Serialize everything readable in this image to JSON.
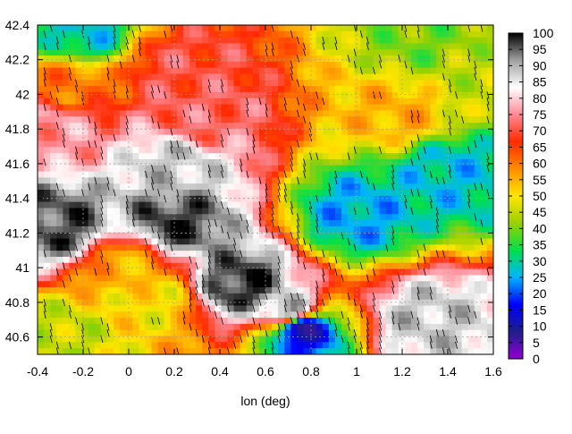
{
  "chart_data": {
    "type": "heatmap",
    "xlabel": "lon (deg)",
    "ylabel": "",
    "xlim": [
      -0.4,
      1.6
    ],
    "ylim": [
      40.5,
      42.4
    ],
    "x_ticks": [
      "-0.4",
      "-0.2",
      "0",
      "0.2",
      "0.4",
      "0.6",
      "0.8",
      "1",
      "1.2",
      "1.4",
      "1.6"
    ],
    "y_ticks": [
      "40.6",
      "40.8",
      "41",
      "41.2",
      "41.4",
      "41.6",
      "41.8",
      "42",
      "42.2",
      "42.4"
    ],
    "colorbar": {
      "min": 0,
      "max": 100,
      "ticks": [
        "0",
        "5",
        "10",
        "15",
        "20",
        "25",
        "30",
        "35",
        "40",
        "45",
        "50",
        "55",
        "60",
        "65",
        "70",
        "75",
        "80",
        "85",
        "90",
        "95",
        "100"
      ],
      "palette": [
        "#9400d3",
        "#1e1e8c",
        "#0000ff",
        "#00b4ff",
        "#00e04a",
        "#9ad000",
        "#ffe600",
        "#ff8c00",
        "#ff2a00",
        "#ff8a96",
        "#ffffff",
        "#a0a0a0",
        "#000000"
      ]
    },
    "grid": true,
    "contours": true,
    "regions": [
      {
        "lon": 1.3,
        "lat": 40.7,
        "value": 88
      },
      {
        "lon": 0.7,
        "lat": 40.75,
        "value": 92
      },
      {
        "lon": 0.5,
        "lat": 40.9,
        "value": 98
      },
      {
        "lon": 0.2,
        "lat": 41.25,
        "value": 97
      },
      {
        "lon": -0.3,
        "lat": 41.25,
        "value": 96
      },
      {
        "lon": 1.0,
        "lat": 41.3,
        "value": 25
      },
      {
        "lon": 1.4,
        "lat": 41.55,
        "value": 27
      },
      {
        "lon": 0.2,
        "lat": 41.6,
        "value": 88
      },
      {
        "lon": 0.3,
        "lat": 41.85,
        "value": 72
      },
      {
        "lon": -0.3,
        "lat": 41.8,
        "value": 76
      },
      {
        "lon": -0.25,
        "lat": 42.05,
        "value": 60
      },
      {
        "lon": 0.2,
        "lat": 42.15,
        "value": 70
      },
      {
        "lon": 1.2,
        "lat": 41.9,
        "value": 55
      },
      {
        "lon": 1.5,
        "lat": 42.1,
        "value": 45
      },
      {
        "lon": -0.2,
        "lat": 42.35,
        "value": 28
      },
      {
        "lon": 1.3,
        "lat": 42.3,
        "value": 40
      },
      {
        "lon": -0.3,
        "lat": 40.6,
        "value": 45
      },
      {
        "lon": 0.1,
        "lat": 40.8,
        "value": 50
      },
      {
        "lon": 0.0,
        "lat": 41.0,
        "value": 55
      },
      {
        "lon": 0.75,
        "lat": 40.65,
        "value": 10
      }
    ]
  }
}
